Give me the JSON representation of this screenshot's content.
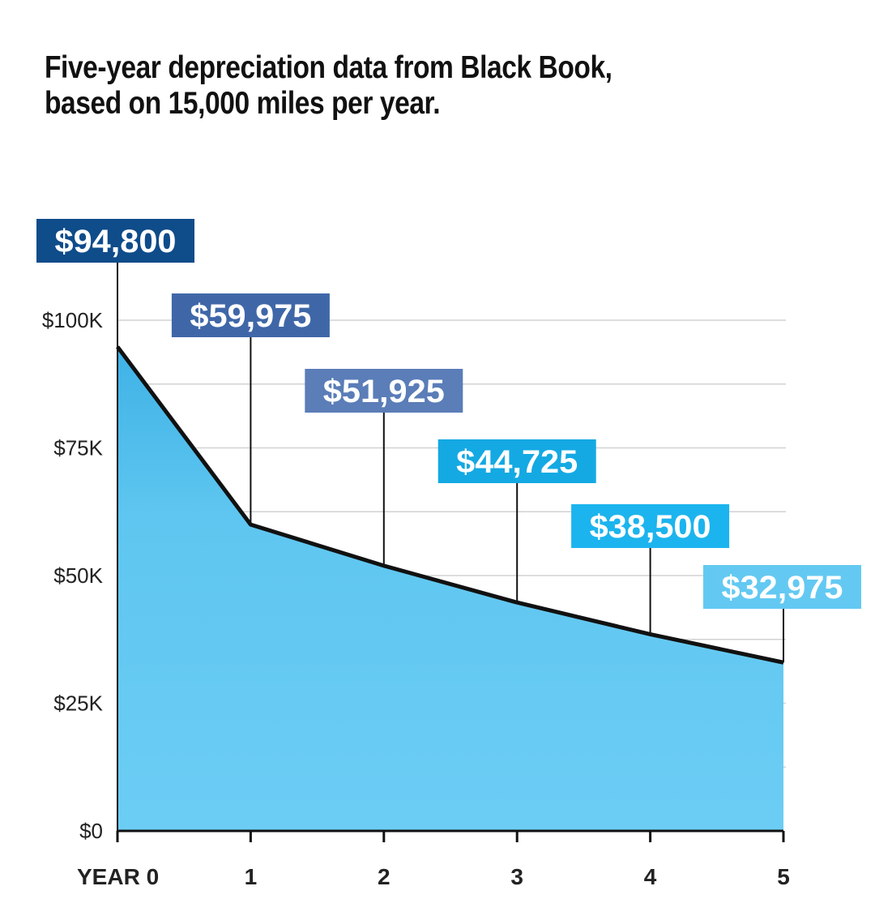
{
  "chart_data": {
    "type": "area",
    "title": "Five-year depreciation data from Black Book, based on 15,000 miles per year.",
    "x": [
      "YEAR 0",
      "1",
      "2",
      "3",
      "4",
      "5"
    ],
    "values": [
      94800,
      59975,
      51925,
      44725,
      38500,
      32975
    ],
    "data_labels": [
      "$94,800",
      "$59,975",
      "$51,925",
      "$44,725",
      "$38,500",
      "$32,975"
    ],
    "label_colors": [
      "#0f4c8a",
      "#3f67a8",
      "#5b7db8",
      "#14a9e3",
      "#1cb4ee",
      "#63c9f2"
    ],
    "yticks": [
      0,
      25000,
      50000,
      75000,
      100000
    ],
    "ytick_labels": [
      "$0",
      "$25K",
      "$50K",
      "$75K",
      "$100K"
    ],
    "ylim": [
      0,
      100000
    ],
    "grid": true,
    "fill_color": "#5ec6f0",
    "xlabel": "",
    "ylabel": ""
  }
}
